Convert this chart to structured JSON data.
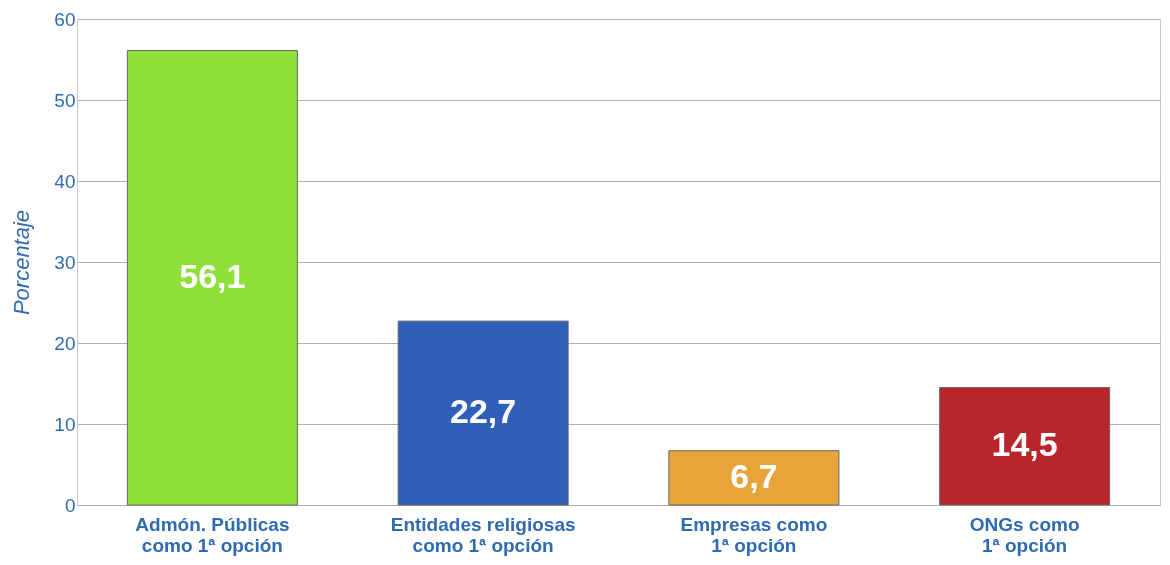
{
  "chart_data": {
    "type": "bar",
    "ylabel": "Porcentaje",
    "categories": [
      "Admón. Públicas\ncomo 1ª opción",
      "Entidades religiosas\ncomo 1ª opción",
      "Empresas como\n1ª opción",
      "ONGs como\n1ª opción"
    ],
    "values": [
      56.1,
      22.7,
      6.7,
      14.5
    ],
    "value_labels": [
      "56,1",
      "22,7",
      "6,7",
      "14,5"
    ],
    "colors": [
      "#8fe03a",
      "#2f5fb8",
      "#e8a43a",
      "#b8262c"
    ],
    "ylim": [
      0,
      60
    ],
    "yticks": [
      0,
      10,
      20,
      30,
      40,
      50,
      60
    ],
    "grid": "y"
  }
}
